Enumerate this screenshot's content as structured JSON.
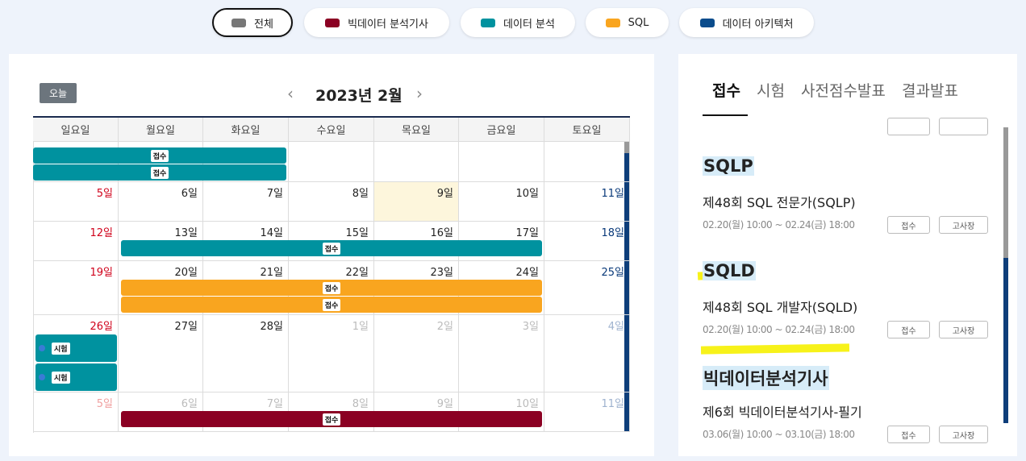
{
  "filters": [
    {
      "label": "전체",
      "color": "#777777",
      "selected": true
    },
    {
      "label": "빅데이터 분석기사",
      "color": "#8b0023"
    },
    {
      "label": "데이터 분석",
      "color": "#00929f"
    },
    {
      "label": "SQL",
      "color": "#f9a51f"
    },
    {
      "label": "데이터 아키텍처",
      "color": "#0a4c8c"
    }
  ],
  "calendar": {
    "today_button": "오늘",
    "title": "2023년 2월",
    "weekdays": [
      "일요일",
      "월요일",
      "화요일",
      "수요일",
      "목요일",
      "금요일",
      "토요일"
    ],
    "weeks": [
      {
        "days": [],
        "events": [
          {
            "label": "접수",
            "color": "#00929f",
            "from": 0,
            "to": 2
          },
          {
            "label": "접수",
            "color": "#00929f",
            "from": 0,
            "to": 2
          }
        ]
      },
      {
        "days": [
          {
            "label": "5일"
          },
          {
            "label": "6일"
          },
          {
            "label": "7일"
          },
          {
            "label": "8일"
          },
          {
            "label": "9일",
            "today": true
          },
          {
            "label": "10일"
          },
          {
            "label": "11일"
          }
        ],
        "events": []
      },
      {
        "days": [
          {
            "label": "12일"
          },
          {
            "label": "13일"
          },
          {
            "label": "14일"
          },
          {
            "label": "15일"
          },
          {
            "label": "16일"
          },
          {
            "label": "17일"
          },
          {
            "label": "18일"
          }
        ],
        "events": [
          {
            "label": "접수",
            "color": "#00929f",
            "from": 1,
            "to": 5
          }
        ]
      },
      {
        "days": [
          {
            "label": "19일"
          },
          {
            "label": "20일"
          },
          {
            "label": "21일"
          },
          {
            "label": "22일"
          },
          {
            "label": "23일"
          },
          {
            "label": "24일"
          },
          {
            "label": "25일"
          }
        ],
        "events": [
          {
            "label": "접수",
            "color": "#f9a51f",
            "from": 1,
            "to": 5
          },
          {
            "label": "접수",
            "color": "#f9a51f",
            "from": 1,
            "to": 5
          }
        ]
      },
      {
        "days": [
          {
            "label": "26일"
          },
          {
            "label": "27일"
          },
          {
            "label": "28일"
          },
          {
            "label": "1일",
            "muted": true
          },
          {
            "label": "2일",
            "muted": true
          },
          {
            "label": "3일",
            "muted": true
          },
          {
            "label": "4일",
            "muted": true
          }
        ],
        "events": [
          {
            "label": "시험",
            "color": "#00929f",
            "from": 0,
            "to": 0,
            "block": true
          },
          {
            "label": "시험",
            "color": "#00929f",
            "from": 0,
            "to": 0,
            "block": true
          }
        ]
      },
      {
        "days": [
          {
            "label": "5일",
            "muted": true
          },
          {
            "label": "6일",
            "muted": true
          },
          {
            "label": "7일",
            "muted": true
          },
          {
            "label": "8일",
            "muted": true
          },
          {
            "label": "9일",
            "muted": true
          },
          {
            "label": "10일",
            "muted": true
          },
          {
            "label": "11일",
            "muted": true
          }
        ],
        "events": [
          {
            "label": "접수",
            "color": "#8b0023",
            "from": 1,
            "to": 5
          }
        ]
      }
    ]
  },
  "tabs": [
    "접수",
    "시험",
    "사전점수발표",
    "결과발표"
  ],
  "items": [
    {
      "heading": "SQLP",
      "name": "제48회 SQL 전문가(SQLP)",
      "period": "02.20(월) 10:00 ~ 02.24(금) 18:00",
      "buttons": [
        "접수",
        "고사장"
      ]
    },
    {
      "heading": "SQLD",
      "name": "제48회 SQL 개발자(SQLD)",
      "period": "02.20(월) 10:00 ~ 02.24(금) 18:00",
      "buttons": [
        "접수",
        "고사장"
      ]
    },
    {
      "heading": "빅데이터분석기사",
      "name": "제6회 빅데이터분석기사-필기",
      "period": "03.06(월) 10:00 ~ 03.10(금) 18:00",
      "buttons": [
        "접수",
        "고사장"
      ]
    }
  ]
}
